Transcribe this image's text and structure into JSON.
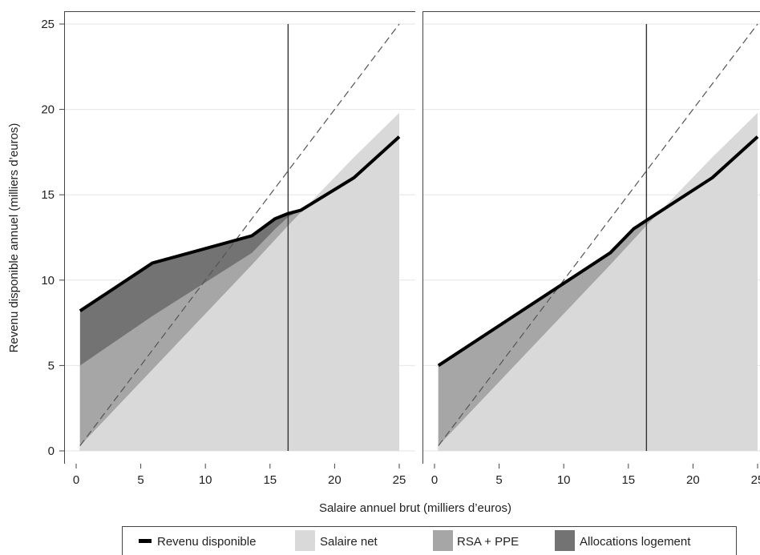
{
  "chart_data": {
    "type": "area",
    "xlabel": "Salaire annuel brut (milliers d’euros)",
    "ylabel": "Revenu disponible annuel (milliers d’euros)",
    "xlim": [
      0,
      25
    ],
    "ylim": [
      0,
      25
    ],
    "x_ticks": [
      "0",
      "5",
      "10",
      "15",
      "20",
      "25"
    ],
    "y_ticks": [
      "0",
      "5",
      "10",
      "15",
      "20",
      "25"
    ],
    "grid": "horizontal",
    "legend_position": "bottom",
    "reference_line_x": 16.4,
    "diagonal": "y = x (dashed)",
    "colors": {
      "revenu": "#000000",
      "salaire_net": "#d9d9d9",
      "rsa_ppe": "#a6a6a6",
      "logement": "#737373"
    },
    "legend": [
      {
        "key": "revenu",
        "label": "Revenu disponible",
        "style": "line"
      },
      {
        "key": "salaire_net",
        "label": "Salaire net",
        "style": "box"
      },
      {
        "key": "rsa_ppe",
        "label": "RSA + PPE",
        "style": "box"
      },
      {
        "key": "logement",
        "label": "Allocations logement",
        "style": "box"
      }
    ],
    "panels": [
      {
        "salaire_net": {
          "x": [
            0.3,
            13.6,
            16.4,
            21.5,
            25
          ],
          "y": [
            0.3,
            10.9,
            13.2,
            17.2,
            19.8
          ]
        },
        "rsa_ppe": {
          "x": [
            0.3,
            5.9,
            13.6,
            15.4,
            16.4,
            17.4,
            21.5,
            25
          ],
          "y": [
            5.0,
            7.9,
            11.6,
            13.0,
            13.7,
            14.1,
            16.0,
            18.4
          ]
        },
        "revenu": {
          "x": [
            0.3,
            5.9,
            13.6,
            15.4,
            16.4,
            17.4,
            21.5,
            25
          ],
          "y": [
            8.2,
            11.0,
            12.6,
            13.6,
            13.9,
            14.1,
            16.0,
            18.4
          ]
        }
      },
      {
        "salaire_net": {
          "x": [
            0.3,
            13.6,
            16.4,
            21.5,
            25
          ],
          "y": [
            0.3,
            10.9,
            13.2,
            17.2,
            19.8
          ]
        },
        "rsa_ppe": {
          "x": [
            0.3,
            13.6,
            15.4,
            16.4,
            21.5,
            25
          ],
          "y": [
            5.0,
            11.6,
            13.0,
            13.5,
            16.0,
            18.4
          ]
        },
        "revenu": {
          "x": [
            0.3,
            13.6,
            15.4,
            16.4,
            21.5,
            25
          ],
          "y": [
            5.0,
            11.6,
            13.0,
            13.5,
            16.0,
            18.4
          ]
        }
      }
    ]
  }
}
